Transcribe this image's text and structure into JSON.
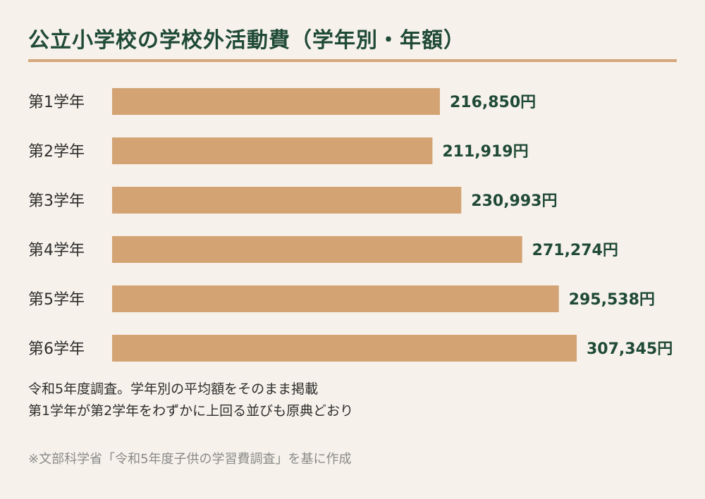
{
  "title": "公立小学校の学校外活動費（学年別・年額）",
  "notes": {
    "line1": "令和5年度調査。学年別の平均額をそのまま掲載",
    "line2": "第1学年が第2学年をわずかに上回る並びも原典どおり"
  },
  "source": "※文部科学省「令和5年度子供の学習費調査」を基に作成",
  "colors": {
    "bar": "#d4a373",
    "title": "#1f4a35",
    "accent_rule": "#d4a67a",
    "background": "#f6f1ea"
  },
  "chart_data": {
    "type": "bar",
    "orientation": "horizontal",
    "categories": [
      "第1学年",
      "第2学年",
      "第3学年",
      "第4学年",
      "第5学年",
      "第6学年"
    ],
    "values": [
      216850,
      211919,
      230993,
      271274,
      295538,
      307345
    ],
    "value_labels": [
      "216,850円",
      "211,919円",
      "230,993円",
      "271,274円",
      "295,538円",
      "307,345円"
    ],
    "title": "公立小学校の学校外活動費（学年別・年額）",
    "xlabel": "",
    "ylabel": "",
    "xlim": [
      0,
      307345
    ],
    "grid": false
  }
}
